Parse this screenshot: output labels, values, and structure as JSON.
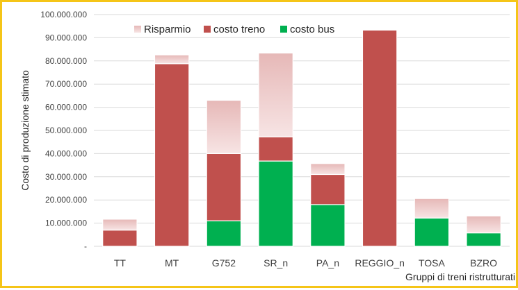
{
  "chart_data": {
    "type": "bar",
    "stacked": true,
    "title": "",
    "xlabel": "Gruppi di treni ristrutturati",
    "ylabel": "Costo di produzione stimato",
    "ylim": [
      0,
      100000000
    ],
    "yticks": [
      {
        "value": 0,
        "label": "-"
      },
      {
        "value": 10000000,
        "label": "10.000.000"
      },
      {
        "value": 20000000,
        "label": "20.000.000"
      },
      {
        "value": 30000000,
        "label": "30.000.000"
      },
      {
        "value": 40000000,
        "label": "40.000.000"
      },
      {
        "value": 50000000,
        "label": "50.000.000"
      },
      {
        "value": 60000000,
        "label": "60.000.000"
      },
      {
        "value": 70000000,
        "label": "70.000.000"
      },
      {
        "value": 80000000,
        "label": "80.000.000"
      },
      {
        "value": 90000000,
        "label": "90.000.000"
      },
      {
        "value": 100000000,
        "label": "100.000.000"
      }
    ],
    "grid": true,
    "legend_position": "top",
    "categories": [
      "TT",
      "MT",
      "G752",
      "SR_n",
      "PA_n",
      "REGGIO_n",
      "TOSA",
      "BZRO"
    ],
    "series": [
      {
        "name": "costo bus",
        "color": "#00b050",
        "values": [
          0,
          0,
          11000000,
          36800000,
          18000000,
          0,
          12200000,
          5800000
        ]
      },
      {
        "name": "costo treno",
        "color": "#c0504d",
        "values": [
          7000000,
          78800000,
          29000000,
          10400000,
          13000000,
          93300000,
          0,
          0
        ]
      },
      {
        "name": "Risparmio",
        "color": "#e6b8b7",
        "gradient": true,
        "values": [
          4700000,
          3800000,
          23000000,
          36200000,
          4700000,
          0,
          8400000,
          7300000
        ]
      }
    ],
    "legend_order": [
      "Risparmio",
      "costo treno",
      "costo bus"
    ]
  }
}
